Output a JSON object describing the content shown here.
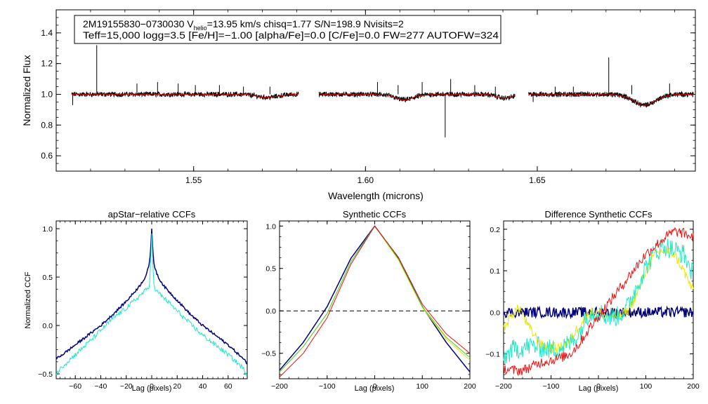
{
  "colors": {
    "spectrum": "#000000",
    "model": "#dd0000",
    "navy": "#00007f",
    "cyan": "#22e6c8",
    "red": "#ee1111",
    "yellow": "#e8e800",
    "green": "#44cc33"
  },
  "chart_data": [
    {
      "type": "line",
      "id": "spectrum",
      "title": "",
      "xlabel": "Wavelength (microns)",
      "ylabel": "Normalized Flux",
      "xlim": [
        1.51,
        1.696
      ],
      "ylim": [
        0.5,
        1.55
      ],
      "xticks": [
        1.55,
        1.6,
        1.65
      ],
      "xtick_labels": [
        "1.55",
        "1.60",
        "1.65"
      ],
      "yticks": [
        0.6,
        0.8,
        1.0,
        1.2,
        1.4
      ],
      "ytick_labels": [
        "0.6",
        "0.8",
        "1.0",
        "1.2",
        "1.4"
      ],
      "info": {
        "line1_a": "2M19155830−0730030  V",
        "line1_sub": "helio",
        "line1_b": "=13.95 km/s  chisq=1.77  S/N=198.9  Nvisits=2",
        "line2": "Teff=15,000 logg=3.5 [Fe/H]=−1.00 [alpha/Fe]=0.0 [C/Fe]=0.0 FW=277 AUTOFW=324"
      },
      "chips": [
        [
          1.5145,
          1.5805
        ],
        [
          1.5865,
          1.6435
        ],
        [
          1.6475,
          1.6955
        ]
      ],
      "dips": [
        {
          "center": 1.5715,
          "width": 0.003,
          "depth": 0.02
        },
        {
          "center": 1.6113,
          "width": 0.0028,
          "depth": 0.035
        },
        {
          "center": 1.6406,
          "width": 0.0022,
          "depth": 0.025
        },
        {
          "center": 1.6812,
          "width": 0.0032,
          "depth": 0.07
        }
      ],
      "spikes": [
        {
          "x": 1.5218,
          "y": 1.32
        },
        {
          "x": 1.5335,
          "y": 1.07
        },
        {
          "x": 1.5395,
          "y": 1.08
        },
        {
          "x": 1.5455,
          "y": 1.07
        },
        {
          "x": 1.5505,
          "y": 1.06
        },
        {
          "x": 1.5575,
          "y": 1.06
        },
        {
          "x": 1.5645,
          "y": 1.05
        },
        {
          "x": 1.5722,
          "y": 1.05
        },
        {
          "x": 1.6035,
          "y": 1.08
        },
        {
          "x": 1.6095,
          "y": 1.06
        },
        {
          "x": 1.6165,
          "y": 1.08
        },
        {
          "x": 1.6248,
          "y": 1.1
        },
        {
          "x": 1.6318,
          "y": 1.06
        },
        {
          "x": 1.6378,
          "y": 1.05
        },
        {
          "x": 1.6552,
          "y": 1.05
        },
        {
          "x": 1.6605,
          "y": 1.05
        },
        {
          "x": 1.6708,
          "y": 1.24
        },
        {
          "x": 1.6775,
          "y": 1.06
        },
        {
          "x": 1.6885,
          "y": 1.07
        }
      ],
      "dropouts": [
        {
          "x": 1.5148,
          "y": 0.93
        },
        {
          "x": 1.6232,
          "y": 0.72
        },
        {
          "x": 1.6488,
          "y": 0.95
        }
      ]
    },
    {
      "type": "line",
      "id": "apstar_ccf",
      "title": "apStar−relative CCFs",
      "xlabel": "Lag (pixels)",
      "ylabel": "Normalized CCF",
      "xlim": [
        -75,
        75
      ],
      "ylim": [
        -0.55,
        1.08
      ],
      "xticks": [
        -60,
        -40,
        -20,
        0,
        20,
        40,
        60
      ],
      "xtick_labels": [
        "−60",
        "−40",
        "−20",
        "0",
        "20",
        "40",
        "60"
      ],
      "yticks": [
        -0.5,
        0.0,
        0.5,
        1.0
      ],
      "ytick_labels": [
        "−0.5",
        "0.0",
        "0.5",
        "1.0"
      ],
      "series": [
        {
          "name": "navy",
          "color": "navy",
          "x": [
            -75,
            -70,
            -60,
            -50,
            -40,
            -30,
            -20,
            -10,
            -5,
            -2,
            -1,
            0,
            1,
            2,
            5,
            10,
            20,
            30,
            40,
            50,
            60,
            70,
            75
          ],
          "y": [
            -0.34,
            -0.3,
            -0.2,
            -0.1,
            0.0,
            0.12,
            0.25,
            0.4,
            0.5,
            0.62,
            0.75,
            1.0,
            0.75,
            0.62,
            0.5,
            0.4,
            0.26,
            0.12,
            0.0,
            -0.1,
            -0.2,
            -0.32,
            -0.39
          ]
        },
        {
          "name": "cyan",
          "color": "cyan",
          "x": [
            -75,
            -70,
            -60,
            -50,
            -40,
            -30,
            -20,
            -10,
            -5,
            -2,
            -1,
            0,
            1,
            2,
            5,
            10,
            20,
            30,
            40,
            50,
            60,
            70,
            75
          ],
          "y": [
            -0.5,
            -0.42,
            -0.3,
            -0.18,
            -0.05,
            0.08,
            0.18,
            0.3,
            0.36,
            0.4,
            0.6,
            0.95,
            0.6,
            0.38,
            0.34,
            0.28,
            0.15,
            0.02,
            -0.1,
            -0.2,
            -0.3,
            -0.42,
            -0.5
          ]
        }
      ]
    },
    {
      "type": "line",
      "id": "synthetic_ccf",
      "title": "Synthetic CCFs",
      "xlabel": "Lag (pixels)",
      "ylabel": "",
      "xlim": [
        -200,
        200
      ],
      "ylim": [
        -0.8,
        1.06
      ],
      "xticks": [
        -200,
        -100,
        0,
        100,
        200
      ],
      "xtick_labels": [
        "−200",
        "−100",
        "0",
        "100",
        "200"
      ],
      "yticks": [
        -0.5,
        0.0,
        0.5,
        1.0
      ],
      "ytick_labels": [
        "−0.5",
        "0.0",
        "0.5",
        "1.0"
      ],
      "hline": 0.0,
      "series": [
        {
          "name": "navy",
          "color": "navy",
          "x": [
            -200,
            -150,
            -100,
            -50,
            0,
            50,
            100,
            150,
            200
          ],
          "y": [
            -0.7,
            -0.37,
            0.05,
            0.62,
            1.0,
            0.62,
            0.05,
            -0.37,
            -0.72
          ]
        },
        {
          "name": "yellow",
          "color": "yellow",
          "x": [
            -200,
            -150,
            -100,
            -50,
            0,
            50,
            100,
            150,
            200
          ],
          "y": [
            -0.72,
            -0.42,
            -0.03,
            0.58,
            1.0,
            0.6,
            0.04,
            -0.33,
            -0.58
          ]
        },
        {
          "name": "green",
          "color": "green",
          "x": [
            -200,
            -150,
            -100,
            -50,
            0,
            50,
            100,
            150,
            200
          ],
          "y": [
            -0.72,
            -0.42,
            -0.03,
            0.58,
            1.0,
            0.61,
            0.05,
            -0.31,
            -0.55
          ]
        },
        {
          "name": "red",
          "color": "red",
          "x": [
            -200,
            -150,
            -100,
            -50,
            0,
            50,
            100,
            150,
            200
          ],
          "y": [
            -0.78,
            -0.5,
            -0.08,
            0.55,
            1.0,
            0.63,
            0.08,
            -0.27,
            -0.5
          ]
        }
      ]
    },
    {
      "type": "line",
      "id": "difference_ccf",
      "title": "Difference Synthetic CCFs",
      "xlabel": "Lag (pixels)",
      "ylabel": "",
      "xlim": [
        -200,
        200
      ],
      "ylim": [
        -0.16,
        0.22
      ],
      "xticks": [
        -200,
        -100,
        0,
        100,
        200
      ],
      "xtick_labels": [
        "−200",
        "−100",
        "0",
        "100",
        "200"
      ],
      "yticks": [
        -0.1,
        0.0,
        0.1,
        0.2
      ],
      "ytick_labels": [
        "−0.1",
        "0.0",
        "0.1",
        "0.2"
      ],
      "series": [
        {
          "name": "navy",
          "color": "navy",
          "x": [
            -200,
            200
          ],
          "y": [
            0.0,
            0.0
          ]
        },
        {
          "name": "yellow",
          "color": "yellow",
          "x": [
            -200,
            -180,
            -165,
            -150,
            -120,
            -100,
            -80,
            -60,
            -40,
            -20,
            0,
            20,
            40,
            60,
            80,
            100,
            120,
            140,
            160,
            180,
            200
          ],
          "y": [
            -0.04,
            0.0,
            0.01,
            -0.03,
            -0.08,
            -0.085,
            -0.085,
            -0.07,
            -0.03,
            0.0,
            0.0,
            -0.01,
            -0.01,
            0.0,
            0.04,
            0.1,
            0.14,
            0.15,
            0.14,
            0.1,
            0.05
          ]
        },
        {
          "name": "cyan",
          "color": "cyan",
          "x": [
            -200,
            -180,
            -160,
            -140,
            -120,
            -100,
            -80,
            -60,
            -40,
            -20,
            0,
            20,
            40,
            60,
            80,
            100,
            120,
            140,
            160,
            180,
            200
          ],
          "y": [
            -0.11,
            -0.09,
            -0.085,
            -0.08,
            -0.085,
            -0.09,
            -0.085,
            -0.075,
            -0.05,
            0.0,
            0.0,
            -0.01,
            -0.01,
            0.01,
            0.06,
            0.11,
            0.145,
            0.16,
            0.15,
            0.14,
            0.09
          ]
        },
        {
          "name": "red",
          "color": "red",
          "x": [
            -200,
            -180,
            -160,
            -140,
            -120,
            -100,
            -80,
            -60,
            -40,
            -20,
            0,
            20,
            40,
            60,
            80,
            100,
            120,
            140,
            160,
            180,
            200
          ],
          "y": [
            -0.135,
            -0.14,
            -0.14,
            -0.13,
            -0.12,
            -0.115,
            -0.11,
            -0.1,
            -0.075,
            -0.04,
            -0.01,
            0.02,
            0.05,
            0.08,
            0.11,
            0.14,
            0.16,
            0.18,
            0.195,
            0.19,
            0.18
          ]
        }
      ]
    }
  ]
}
